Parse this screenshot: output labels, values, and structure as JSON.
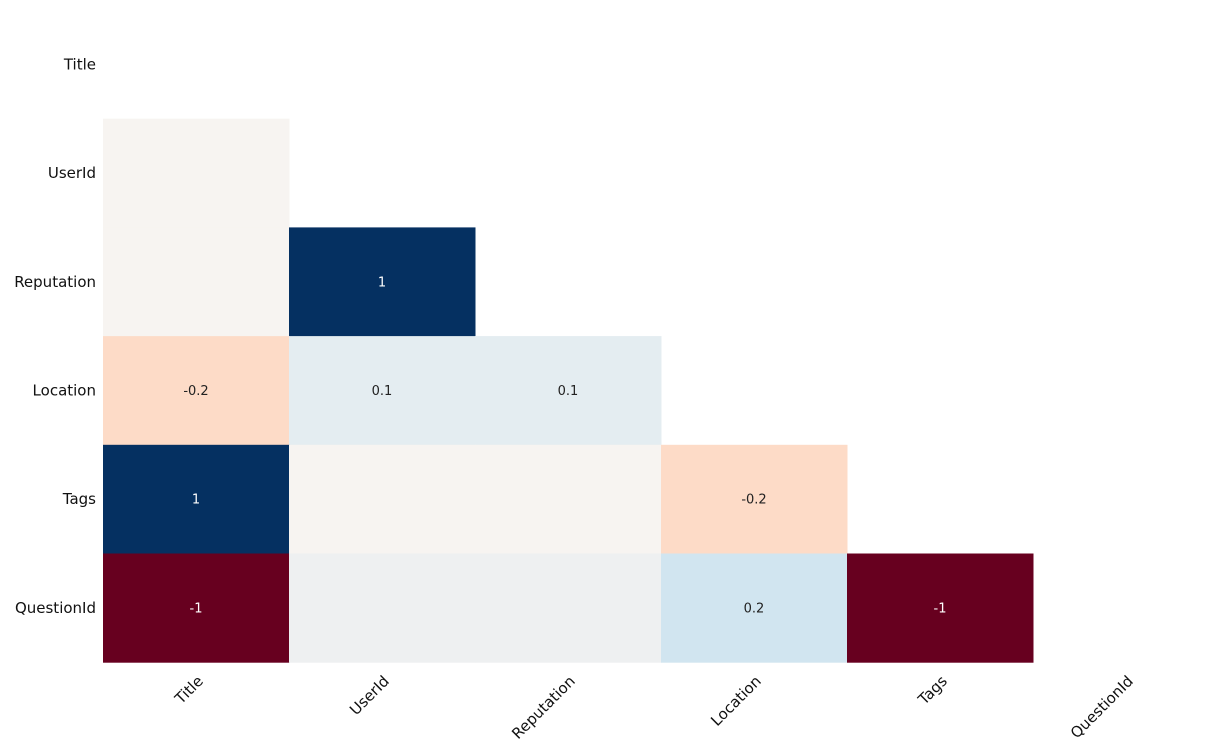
{
  "chart_data": {
    "type": "heatmap",
    "title": "",
    "xlabel": "",
    "ylabel": "",
    "labels": [
      "Title",
      "UserId",
      "Reputation",
      "Location",
      "Tags",
      "QuestionId"
    ],
    "values": [
      [
        null,
        null,
        null,
        null,
        null,
        null
      ],
      [
        0.0,
        null,
        null,
        null,
        null,
        null
      ],
      [
        0.0,
        1.0,
        null,
        null,
        null,
        null
      ],
      [
        -0.2,
        0.1,
        0.1,
        null,
        null,
        null
      ],
      [
        1.0,
        0.0,
        0.0,
        -0.2,
        null,
        null
      ],
      [
        -1.0,
        0.05,
        0.05,
        0.2,
        -1.0,
        null
      ]
    ],
    "cell_labels": [
      [
        "",
        "",
        "",
        "",
        "",
        ""
      ],
      [
        "",
        "",
        "",
        "",
        "",
        ""
      ],
      [
        "",
        "1",
        "",
        "",
        "",
        ""
      ],
      [
        "-0.2",
        "0.1",
        "0.1",
        "",
        "",
        ""
      ],
      [
        "1",
        "",
        "",
        "-0.2",
        "",
        ""
      ],
      [
        "-1",
        "",
        "",
        "0.2",
        "-1",
        ""
      ]
    ],
    "value_range": [
      -1,
      1
    ],
    "colormap": "RdBu",
    "mask": "upper-triangle-and-diagonal",
    "grid": false,
    "legend": "none"
  }
}
